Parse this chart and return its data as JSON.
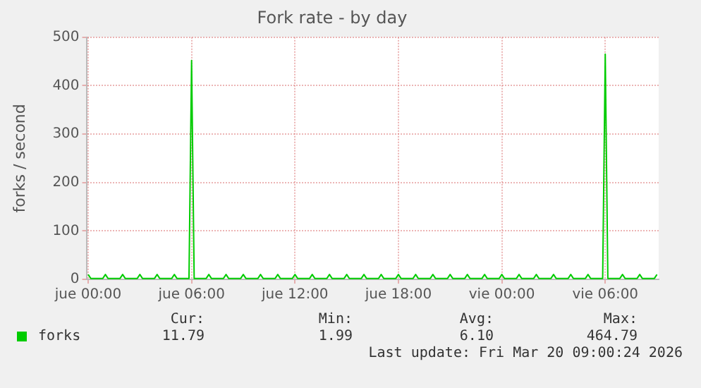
{
  "chart_data": {
    "type": "line",
    "title": "Fork rate - by day",
    "ylabel": "forks / second",
    "x": [
      "2026-03-19T00:00",
      "2026-03-19T00:09",
      "2026-03-19T00:51",
      "2026-03-19T01:00",
      "2026-03-19T01:09",
      "2026-03-19T01:51",
      "2026-03-19T02:00",
      "2026-03-19T02:09",
      "2026-03-19T02:51",
      "2026-03-19T03:00",
      "2026-03-19T03:09",
      "2026-03-19T03:51",
      "2026-03-19T04:00",
      "2026-03-19T04:09",
      "2026-03-19T04:51",
      "2026-03-19T05:00",
      "2026-03-19T05:09",
      "2026-03-19T05:51",
      "2026-03-19T06:00",
      "2026-03-19T06:09",
      "2026-03-19T06:51",
      "2026-03-19T07:00",
      "2026-03-19T07:09",
      "2026-03-19T07:51",
      "2026-03-19T08:00",
      "2026-03-19T08:09",
      "2026-03-19T08:51",
      "2026-03-19T09:00",
      "2026-03-19T09:09",
      "2026-03-19T09:51",
      "2026-03-19T10:00",
      "2026-03-19T10:09",
      "2026-03-19T10:51",
      "2026-03-19T11:00",
      "2026-03-19T11:09",
      "2026-03-19T11:51",
      "2026-03-19T12:00",
      "2026-03-19T12:09",
      "2026-03-19T12:51",
      "2026-03-19T13:00",
      "2026-03-19T13:09",
      "2026-03-19T13:51",
      "2026-03-19T14:00",
      "2026-03-19T14:09",
      "2026-03-19T14:51",
      "2026-03-19T15:00",
      "2026-03-19T15:09",
      "2026-03-19T15:51",
      "2026-03-19T16:00",
      "2026-03-19T16:09",
      "2026-03-19T16:51",
      "2026-03-19T17:00",
      "2026-03-19T17:09",
      "2026-03-19T17:51",
      "2026-03-19T18:00",
      "2026-03-19T18:09",
      "2026-03-19T18:51",
      "2026-03-19T19:00",
      "2026-03-19T19:09",
      "2026-03-19T19:51",
      "2026-03-19T20:00",
      "2026-03-19T20:09",
      "2026-03-19T20:51",
      "2026-03-19T21:00",
      "2026-03-19T21:09",
      "2026-03-19T21:51",
      "2026-03-19T22:00",
      "2026-03-19T22:09",
      "2026-03-19T22:51",
      "2026-03-19T23:00",
      "2026-03-19T23:09",
      "2026-03-19T23:51",
      "2026-03-20T00:00",
      "2026-03-20T00:09",
      "2026-03-20T00:51",
      "2026-03-20T01:00",
      "2026-03-20T01:09",
      "2026-03-20T01:51",
      "2026-03-20T02:00",
      "2026-03-20T02:09",
      "2026-03-20T02:51",
      "2026-03-20T03:00",
      "2026-03-20T03:09",
      "2026-03-20T03:51",
      "2026-03-20T04:00",
      "2026-03-20T04:09",
      "2026-03-20T04:51",
      "2026-03-20T05:00",
      "2026-03-20T05:09",
      "2026-03-20T05:51",
      "2026-03-20T06:00",
      "2026-03-20T06:09",
      "2026-03-20T06:51",
      "2026-03-20T07:00",
      "2026-03-20T07:09",
      "2026-03-20T07:51",
      "2026-03-20T08:00",
      "2026-03-20T08:09",
      "2026-03-20T08:51",
      "2026-03-20T09:00"
    ],
    "xlim": [
      "2026-03-18T23:54",
      "2026-03-20T09:06"
    ],
    "xticks": [
      {
        "value": "2026-03-19T00:00",
        "label": "jue 00:00"
      },
      {
        "value": "2026-03-19T06:00",
        "label": "jue 06:00"
      },
      {
        "value": "2026-03-19T12:00",
        "label": "jue 12:00"
      },
      {
        "value": "2026-03-19T18:00",
        "label": "jue 18:00"
      },
      {
        "value": "2026-03-20T00:00",
        "label": "vie 00:00"
      },
      {
        "value": "2026-03-20T06:00",
        "label": "vie 06:00"
      }
    ],
    "ylim": [
      0,
      500
    ],
    "yticks": [
      0,
      100,
      200,
      300,
      400,
      500
    ],
    "grid": true,
    "legend": "bottom left",
    "marker": "none",
    "series": [
      {
        "name": "forks",
        "color": "#00cc00",
        "values": [
          10,
          2,
          2,
          10,
          2,
          2,
          10,
          2,
          2,
          10,
          2,
          2,
          10,
          2,
          2,
          10,
          2,
          2,
          452,
          2,
          2,
          10,
          2,
          2,
          10,
          2,
          2,
          10,
          2,
          2,
          10,
          2,
          2,
          10,
          2,
          2,
          10,
          2,
          2,
          10,
          2,
          2,
          10,
          2,
          2,
          10,
          2,
          2,
          10,
          2,
          2,
          10,
          2,
          2,
          10,
          2,
          2,
          10,
          2,
          2,
          10,
          2,
          2,
          10,
          2,
          2,
          10,
          2,
          2,
          10,
          2,
          2,
          10,
          2,
          2,
          10,
          2,
          2,
          10,
          2,
          2,
          10,
          2,
          2,
          10,
          2,
          2,
          10,
          2,
          2,
          465,
          2,
          2,
          10,
          2,
          2,
          10,
          2,
          2,
          10
        ]
      }
    ],
    "annotations": [
      "Cur:",
      "Min:",
      "Avg:",
      "Max:",
      "11.79",
      "1.99",
      "6.10",
      "464.79",
      "Last update: Fri Mar 20 09:00:24 2026"
    ]
  }
}
